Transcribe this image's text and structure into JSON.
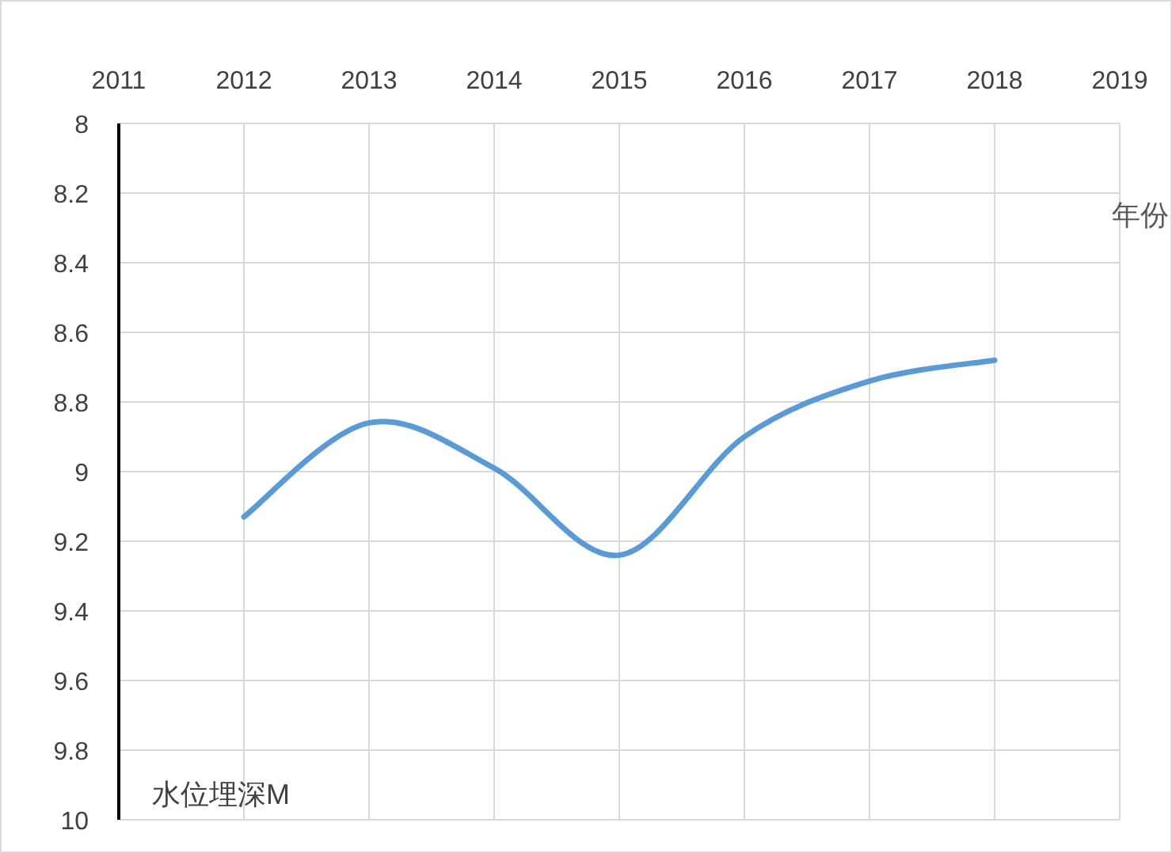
{
  "chart_data": {
    "type": "line",
    "xlabel": "年份",
    "ylabel": "水位埋深M",
    "x": [
      2012,
      2013,
      2014,
      2015,
      2016,
      2017,
      2018
    ],
    "series": [
      {
        "color": "#5b9bd5",
        "values": [
          9.13,
          8.86,
          8.99,
          9.24,
          8.9,
          8.74,
          8.68
        ]
      }
    ],
    "xlim": [
      2011,
      2019
    ],
    "xticks": [
      2011,
      2012,
      2013,
      2014,
      2015,
      2016,
      2017,
      2018,
      2019
    ],
    "ylim": [
      10,
      8
    ],
    "yticks": [
      8,
      8.2,
      8.4,
      8.6,
      8.8,
      9,
      9.2,
      9.4,
      9.6,
      9.8,
      10
    ],
    "grid": true,
    "marker": "none",
    "line_style": "solid"
  }
}
